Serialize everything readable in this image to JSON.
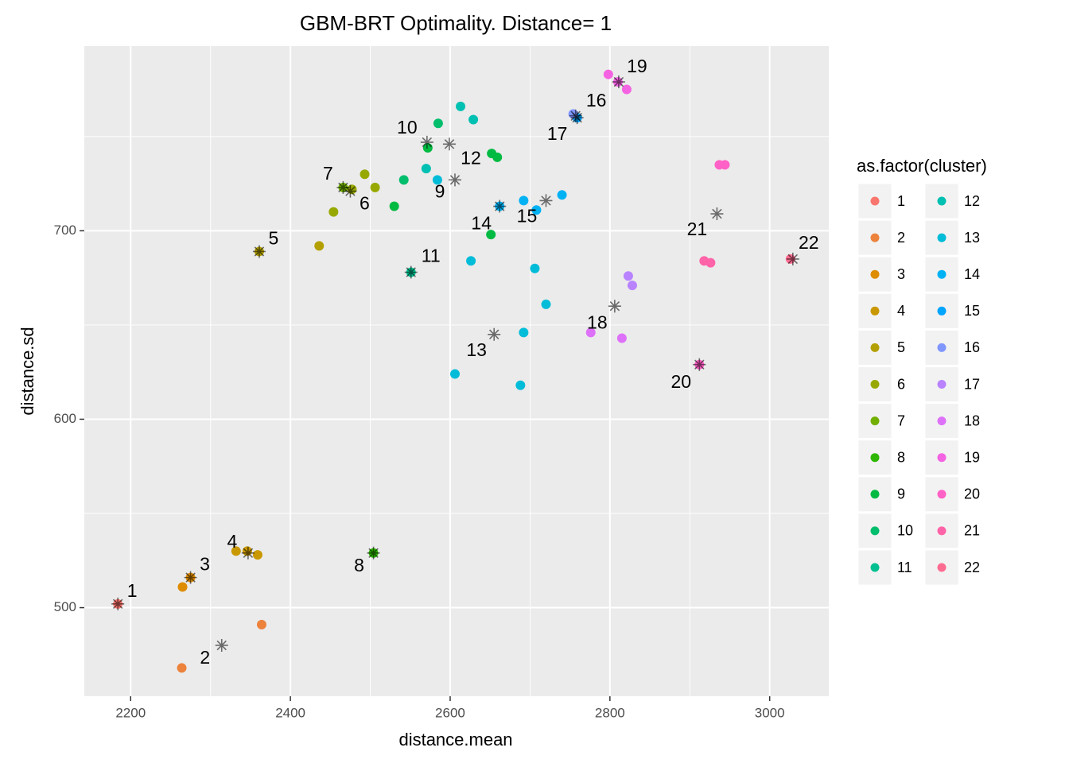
{
  "chart_data": {
    "type": "scatter",
    "title": "GBM-BRT Optimality. Distance= 1",
    "x_label": "distance.mean",
    "y_label": "distance.sd",
    "legend_title": "as.factor(cluster)",
    "xlim": [
      2142,
      3074
    ],
    "ylim": [
      453,
      798
    ],
    "xticks": [
      2200,
      2400,
      2600,
      2800,
      3000
    ],
    "yticks": [
      500,
      600,
      700
    ],
    "x_minor_ticks": [
      2300,
      2500,
      2700,
      2900
    ],
    "y_minor_ticks": [
      550,
      650,
      750
    ],
    "grid": true,
    "series": [
      {
        "name": "1",
        "color": "#F8766D",
        "x": [
          2184
        ],
        "y": [
          502
        ],
        "center_x": 2184,
        "center_y": 502
      },
      {
        "name": "2",
        "color": "#EC823C",
        "x": [
          2264,
          2364
        ],
        "y": [
          468,
          491
        ],
        "center_x": 2314,
        "center_y": 480
      },
      {
        "name": "3",
        "color": "#DE8C00",
        "x": [
          2265,
          2275
        ],
        "y": [
          511,
          516
        ],
        "center_x": 2275,
        "center_y": 516
      },
      {
        "name": "4",
        "color": "#C99800",
        "x": [
          2332,
          2346,
          2359
        ],
        "y": [
          530,
          530,
          528
        ],
        "center_x": 2347,
        "center_y": 529
      },
      {
        "name": "5",
        "color": "#B3A000",
        "x": [
          2361,
          2436
        ],
        "y": [
          689,
          692
        ],
        "center_x": 2361,
        "center_y": 689
      },
      {
        "name": "6",
        "color": "#97A900",
        "x": [
          2454,
          2493,
          2506,
          2477
        ],
        "y": [
          710,
          730,
          723,
          722
        ],
        "center_x": 2475,
        "center_y": 721
      },
      {
        "name": "7",
        "color": "#72B000",
        "x": [
          2466
        ],
        "y": [
          723
        ],
        "center_x": 2466,
        "center_y": 723
      },
      {
        "name": "8",
        "color": "#2EB600",
        "x": [
          2504
        ],
        "y": [
          529
        ],
        "center_x": 2504,
        "center_y": 529
      },
      {
        "name": "9",
        "color": "#00BA42",
        "x": [
          2530,
          2572,
          2651,
          2652,
          2659
        ],
        "y": [
          713,
          744,
          698,
          741,
          739
        ],
        "center_x": 2606,
        "center_y": 727
      },
      {
        "name": "10",
        "color": "#00BE6C",
        "x": [
          2585,
          2542
        ],
        "y": [
          757,
          727
        ],
        "center_x": 2571,
        "center_y": 747
      },
      {
        "name": "11",
        "color": "#00C091",
        "x": [
          2551
        ],
        "y": [
          678
        ],
        "center_x": 2551,
        "center_y": 678
      },
      {
        "name": "12",
        "color": "#00C0B2",
        "x": [
          2613,
          2629,
          2570
        ],
        "y": [
          766,
          759,
          733
        ],
        "center_x": 2599,
        "center_y": 746
      },
      {
        "name": "13",
        "color": "#00BCD8",
        "x": [
          2584,
          2626,
          2606,
          2688,
          2706,
          2720,
          2692
        ],
        "y": [
          727,
          684,
          624,
          618,
          680,
          661,
          646
        ],
        "center_x": 2655,
        "center_y": 645
      },
      {
        "name": "14",
        "color": "#00B2F3",
        "x": [
          2692,
          2708,
          2740,
          2662
        ],
        "y": [
          716,
          711,
          719,
          713
        ],
        "center_x": 2662,
        "center_y": 713
      },
      {
        "name": "15",
        "color": "#00A5FF",
        "x": [
          2759
        ],
        "y": [
          760
        ],
        "center_x": 2720,
        "center_y": 716
      },
      {
        "name": "16",
        "color": "#7F96FF",
        "x": [
          2754
        ],
        "y": [
          762
        ],
        "center_x": 2759,
        "center_y": 760
      },
      {
        "name": "17",
        "color": "#B983FF",
        "x": [
          2823,
          2828
        ],
        "y": [
          676,
          671
        ],
        "center_x": 2757,
        "center_y": 761
      },
      {
        "name": "18",
        "color": "#DE71F9",
        "x": [
          2776,
          2815
        ],
        "y": [
          646,
          643
        ],
        "center_x": 2806,
        "center_y": 660
      },
      {
        "name": "19",
        "color": "#F464E2",
        "x": [
          2798,
          2810,
          2821
        ],
        "y": [
          783,
          779,
          775
        ],
        "center_x": 2811,
        "center_y": 779
      },
      {
        "name": "20",
        "color": "#FF61C6",
        "x": [
          2912,
          2937,
          2944
        ],
        "y": [
          629,
          735,
          735
        ],
        "center_x": 2912,
        "center_y": 629
      },
      {
        "name": "21",
        "color": "#FF64A8",
        "x": [
          2918,
          2926
        ],
        "y": [
          684,
          683
        ],
        "center_x": 2934,
        "center_y": 709
      },
      {
        "name": "22",
        "color": "#FF6C91",
        "x": [
          3026
        ],
        "y": [
          685
        ],
        "center_x": 3029,
        "center_y": 685
      }
    ]
  }
}
